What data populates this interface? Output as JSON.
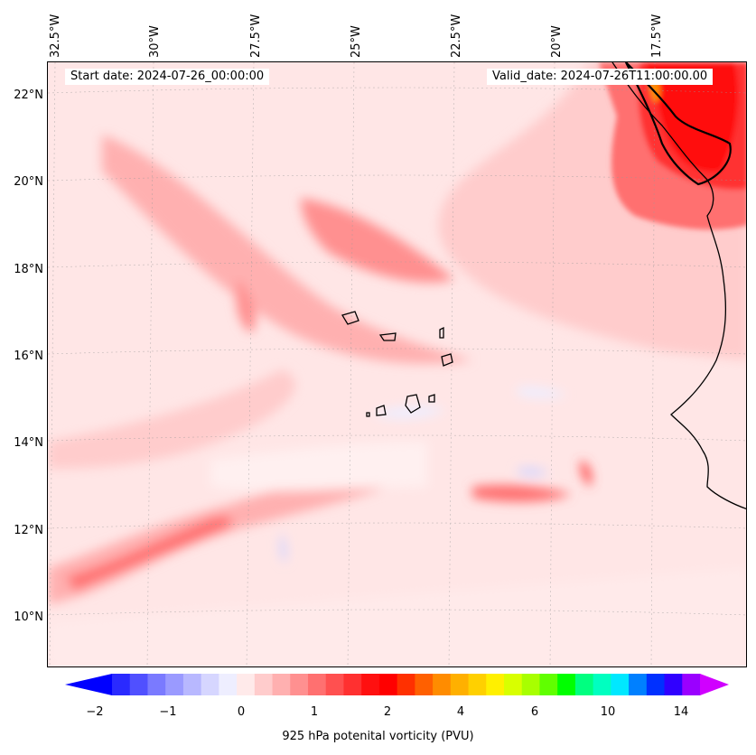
{
  "map": {
    "start_date": "Start date: 2024-07-26_00:00:00",
    "valid_date": "Valid_date: 2024-07-26T11:00:00.00",
    "lon_labels": [
      "32.5°W",
      "30°W",
      "27.5°W",
      "25°W",
      "22.5°W",
      "20°W",
      "17.5°W"
    ],
    "lat_labels": [
      "22°N",
      "20°N",
      "18°N",
      "16°N",
      "14°N",
      "12°N",
      "10°N"
    ],
    "background_color": "#ffe6e6",
    "coastline_color": "#000000"
  },
  "colorbar": {
    "label": "925 hPa potenital vorticity (PVU)",
    "tick_labels": [
      "−2",
      "−1",
      "0",
      "1",
      "2",
      "4",
      "6",
      "10",
      "14"
    ],
    "colors": [
      "#0000ff",
      "#2a2aff",
      "#5050ff",
      "#7a7aff",
      "#9a9aff",
      "#b8b8ff",
      "#d6d6ff",
      "#eeeeff",
      "#ffeaea",
      "#ffcccc",
      "#ffb0b0",
      "#ff9090",
      "#ff7070",
      "#ff5050",
      "#ff3030",
      "#ff1010",
      "#ff0000",
      "#ff3000",
      "#ff6000",
      "#ff8c00",
      "#ffb000",
      "#ffd000",
      "#fff000",
      "#d8ff00",
      "#a8ff00",
      "#60ff00",
      "#00ff00",
      "#00ff80",
      "#00ffc0",
      "#00e8ff",
      "#0080ff",
      "#0030ff",
      "#3000ff",
      "#9a00ff",
      "#d000ff"
    ]
  }
}
